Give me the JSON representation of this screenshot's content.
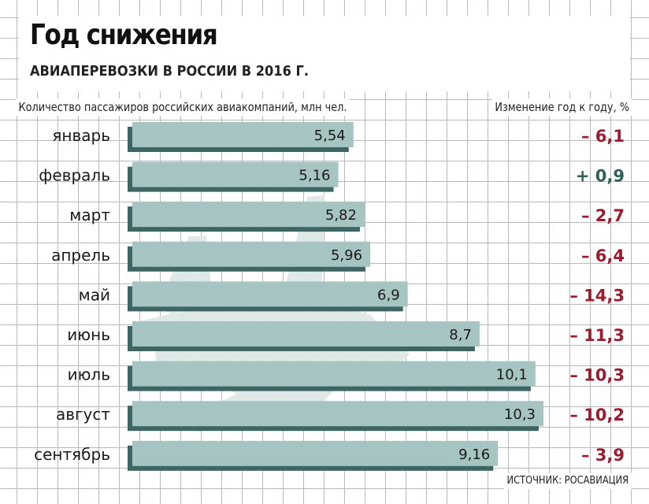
{
  "header": {
    "title": "Год снижения",
    "subtitle": "АВИАПЕРЕВОЗКИ В РОССИИ В 2016 Г."
  },
  "labels": {
    "left": "Количество пассажиров российских авиакомпаний, млн чел.",
    "right": "Изменение год к году, %"
  },
  "source": "ИСТОЧНИК: РОСАВИАЦИЯ",
  "colors": {
    "bar": "#a6c4c1",
    "bar_shadow": "#3c6563",
    "negative": "#9a1c2e",
    "positive": "#2f5f5b",
    "plane": "#dde8e6"
  },
  "chart_data": {
    "type": "bar",
    "orientation": "horizontal",
    "categories": [
      "январь",
      "февраль",
      "март",
      "апрель",
      "май",
      "июнь",
      "июль",
      "август",
      "сентябрь"
    ],
    "series": [
      {
        "values": [
          5.54,
          5.16,
          5.82,
          5.96,
          6.9,
          8.7,
          10.1,
          10.3,
          9.16
        ],
        "value_labels": [
          "5,54",
          "5,16",
          "5,82",
          "5,96",
          "6,9",
          "8,7",
          "10,1",
          "10,3",
          "9,16"
        ]
      },
      {
        "values": [
          -6.1,
          0.9,
          -2.7,
          -6.4,
          -14.3,
          -11.3,
          -10.3,
          -10.2,
          -3.9
        ],
        "value_labels": [
          "– 6,1",
          "+ 0,9",
          "– 2,7",
          "– 6,4",
          "– 14,3",
          "– 11,3",
          "– 10,3",
          "– 10,2",
          "– 3,9"
        ]
      }
    ],
    "xlim": [
      0,
      10.3
    ],
    "grid": true,
    "legend": "none"
  }
}
